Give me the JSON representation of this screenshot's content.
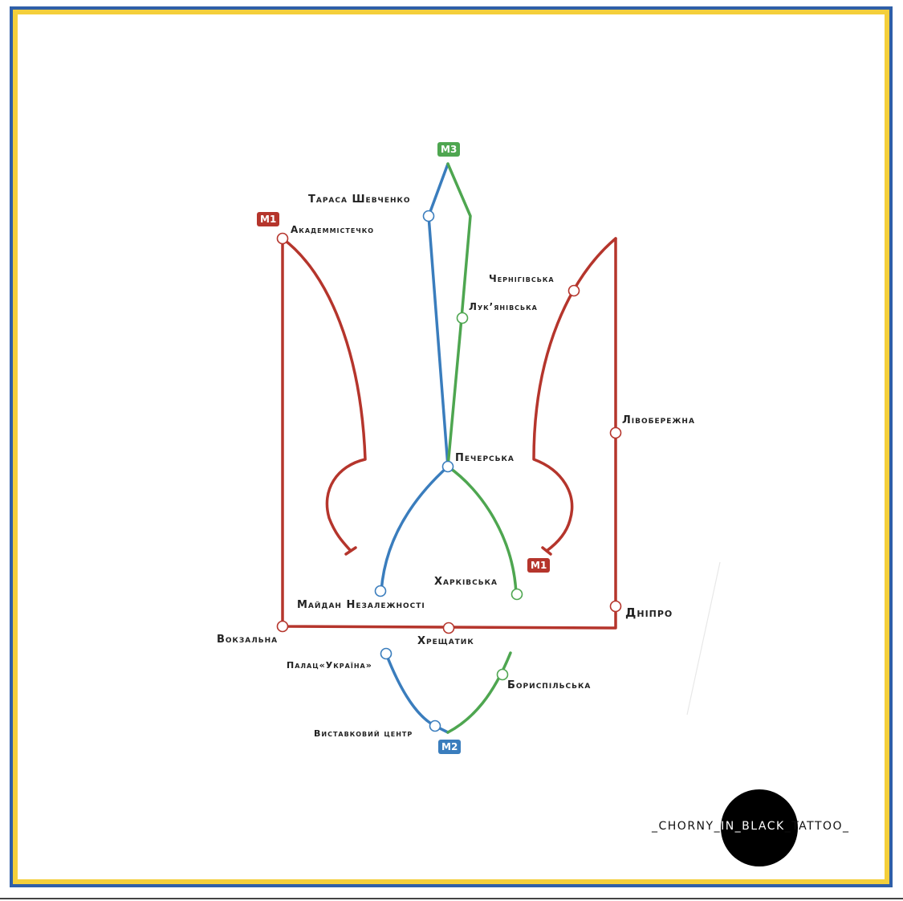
{
  "colors": {
    "red_line": "#b5352c",
    "blue_line": "#3a7dbd",
    "green_line": "#4ea650",
    "frame_blue": "#2f5fa8",
    "frame_yellow": "#f4cf3b"
  },
  "lines": {
    "m1": "M1",
    "m2": "M2",
    "m3": "M3"
  },
  "stations": {
    "akademmistechko": "Академмістечко",
    "taras_shevchenko": "Тараса Шевченко",
    "chernihivska": "Чернігівська",
    "lukianivska": "Лук’янівська",
    "livoberezhna": "Лівобережна",
    "pecherska": "Печерська",
    "kharkivska": "Харківська",
    "maidan": "Майдан Незалежності",
    "dnipro": "Дніпро",
    "vokzalna": "Вокзальна",
    "khreshchatyk": "Хрещатик",
    "palats_ukraina": "Палац«Україна»",
    "boryspilska": "Бориспільська",
    "vystavkovyi": "Виставковий центр"
  },
  "logo": {
    "text_before": "_CHORNY_",
    "text_middle": "IN_BLACK",
    "text_after": "_TATTOO_"
  }
}
